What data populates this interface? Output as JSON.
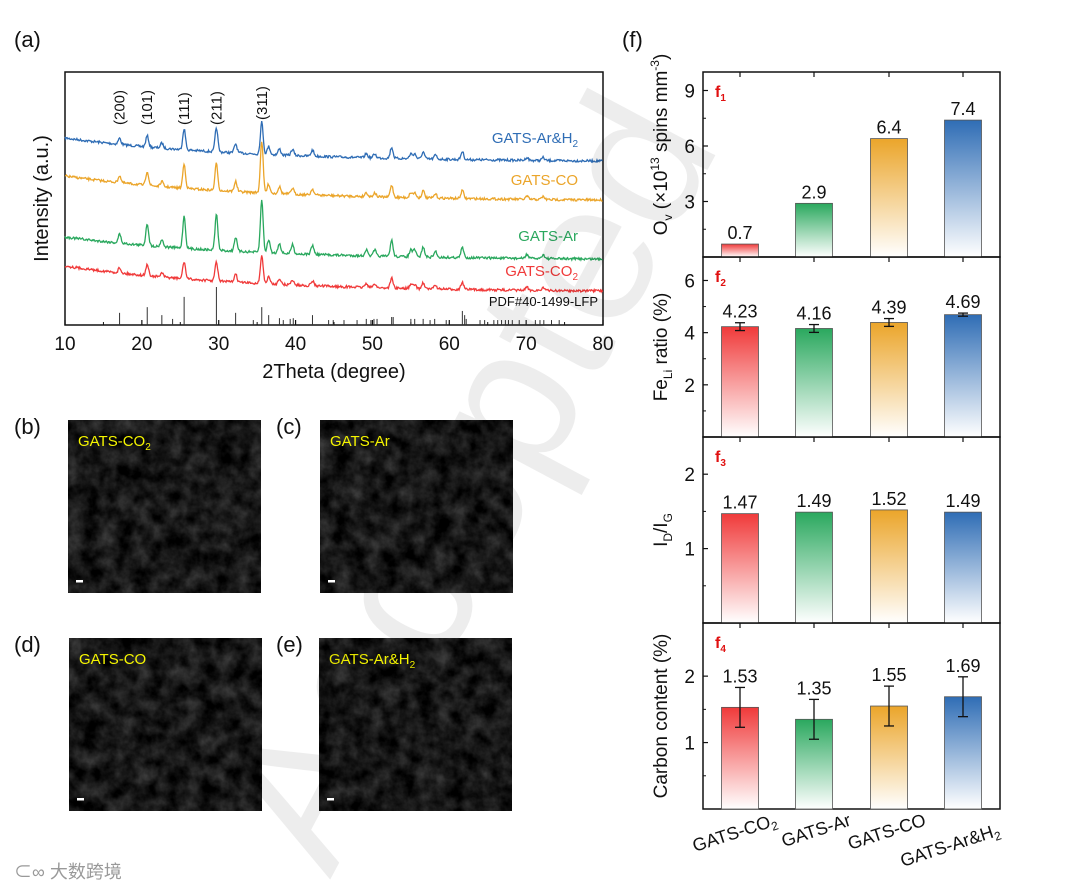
{
  "panel_labels": {
    "a": "(a)",
    "b": "(b)",
    "c": "(c)",
    "d": "(d)",
    "e": "(e)",
    "f": "(f)"
  },
  "colors": {
    "GATS-CO2": "#f03a3a",
    "GATS-Ar": "#2aa85e",
    "GATS-CO": "#eba52a",
    "GATS-Ar&H2": "#2f6db5",
    "sem_label": "#f5f500",
    "sub_label": "#e01010"
  },
  "sem_images": [
    {
      "panel": "b",
      "label": "GATS-CO",
      "label_sub": "2"
    },
    {
      "panel": "c",
      "label": "GATS-Ar",
      "label_sub": ""
    },
    {
      "panel": "d",
      "label": "GATS-CO",
      "label_sub": ""
    },
    {
      "panel": "e",
      "label": "GATS-Ar&H",
      "label_sub": "2"
    }
  ],
  "watermark": {
    "text": "Accepted",
    "logo_text": "大数跨境"
  },
  "chart_data": [
    {
      "type": "line",
      "panel": "a",
      "xlabel": "2Theta (degree)",
      "ylabel": "Intensity (a.u.)",
      "xlim": [
        10,
        80
      ],
      "xticks": [
        10,
        20,
        30,
        40,
        50,
        60,
        70,
        80
      ],
      "grid": false,
      "peak_annotations": [
        {
          "x": 17.1,
          "label": "(200)"
        },
        {
          "x": 20.7,
          "label": "(101)"
        },
        {
          "x": 25.5,
          "label": "(111)"
        },
        {
          "x": 29.7,
          "label": "(211)"
        },
        {
          "x": 35.6,
          "label": "(311)"
        }
      ],
      "peaks_2theta": [
        17.1,
        20.7,
        22.6,
        25.5,
        29.7,
        32.2,
        35.6,
        36.5,
        37.9,
        39.6,
        42.2,
        49.2,
        50.3,
        52.5,
        55.0,
        55.5,
        56.6,
        58.2,
        61.7,
        70.1,
        72.2
      ],
      "series": [
        {
          "name": "GATS-Ar&H",
          "name_sub": "2",
          "color_key": "GATS-Ar&H2",
          "relative_intensity": [
            6,
            11,
            5,
            21,
            24,
            9,
            32,
            8,
            6,
            6,
            6,
            4,
            4,
            11,
            5,
            5,
            7,
            4,
            8,
            3,
            3
          ]
        },
        {
          "name": "GATS-CO",
          "name_sub": "",
          "color_key": "GATS-CO",
          "relative_intensity": [
            7,
            14,
            5,
            24,
            27,
            10,
            52,
            9,
            7,
            6,
            6,
            4,
            4,
            12,
            5,
            5,
            7,
            4,
            8,
            3,
            3
          ]
        },
        {
          "name": "GATS-Ar",
          "name_sub": "",
          "color_key": "GATS-Ar",
          "relative_intensity": [
            9,
            22,
            7,
            32,
            36,
            14,
            52,
            13,
            10,
            9,
            9,
            6,
            6,
            16,
            7,
            7,
            10,
            6,
            10,
            4,
            4
          ]
        },
        {
          "name": "GATS-CO",
          "name_sub": "2",
          "color_key": "GATS-CO2",
          "relative_intensity": [
            5,
            11,
            4,
            17,
            19,
            8,
            28,
            7,
            6,
            5,
            5,
            4,
            4,
            10,
            4,
            4,
            6,
            4,
            7,
            3,
            3
          ]
        }
      ],
      "reference": {
        "name": "PDF#40-1499-LFP",
        "x": [
          17.1,
          20.7,
          22.6,
          24.0,
          25.5,
          29.7,
          32.2,
          34.5,
          35.6,
          36.5,
          37.9,
          38.4,
          39.3,
          39.7,
          42.2,
          44.3,
          44.9,
          46.3,
          48.0,
          49.2,
          49.8,
          50.2,
          50.6,
          52.5,
          52.7,
          55.0,
          55.5,
          56.6,
          57.5,
          58.1,
          59.6,
          61.7,
          62.0,
          62.2,
          64.0,
          64.6,
          65.8,
          66.3,
          66.8,
          67.3,
          67.7,
          68.2,
          69.1,
          70.0,
          71.2,
          71.8,
          72.3,
          73.3,
          74.3
        ],
        "relative_intensity": [
          32,
          47,
          26,
          16,
          74,
          100,
          32,
          13,
          47,
          26,
          18,
          13,
          16,
          18,
          26,
          13,
          13,
          13,
          13,
          16,
          13,
          16,
          16,
          21,
          21,
          16,
          16,
          16,
          13,
          16,
          13,
          37,
          26,
          16,
          13,
          13,
          13,
          13,
          13,
          13,
          13,
          13,
          13,
          13,
          13,
          13,
          13,
          13,
          13
        ]
      }
    },
    {
      "type": "bar",
      "panel": "f1",
      "sub_label": "f",
      "sub_index": "1",
      "categories": [
        "GATS-CO2",
        "GATS-Ar",
        "GATS-CO",
        "GATS-Ar&H2"
      ],
      "values": [
        0.7,
        2.9,
        6.4,
        7.4
      ],
      "data_labels": [
        "0.7",
        "2.9",
        "6.4",
        "7.4"
      ],
      "ylabel": "O",
      "ylabel_sub": "v",
      "ylabel_rest": " (×10",
      "ylabel_sup": "13",
      "ylabel_rest2": " spins mm",
      "ylabel_sup2": "-3",
      "ylabel_end": ")",
      "ylim": [
        0,
        10
      ],
      "yticks": [
        3,
        6,
        9
      ]
    },
    {
      "type": "bar",
      "panel": "f2",
      "sub_label": "f",
      "sub_index": "2",
      "categories": [
        "GATS-CO2",
        "GATS-Ar",
        "GATS-CO",
        "GATS-Ar&H2"
      ],
      "values": [
        4.23,
        4.16,
        4.39,
        4.69
      ],
      "errors": [
        0.15,
        0.15,
        0.15,
        0.06
      ],
      "data_labels": [
        "4.23",
        "4.16",
        "4.39",
        "4.69"
      ],
      "ylabel": "Fe",
      "ylabel_sub": "Li",
      "ylabel_rest": " ratio (%)",
      "ylim": [
        0,
        6.9
      ],
      "yticks": [
        2,
        4,
        6
      ]
    },
    {
      "type": "bar",
      "panel": "f3",
      "sub_label": "f",
      "sub_index": "3",
      "categories": [
        "GATS-CO2",
        "GATS-Ar",
        "GATS-CO",
        "GATS-Ar&H2"
      ],
      "values": [
        1.47,
        1.49,
        1.52,
        1.49
      ],
      "data_labels": [
        "1.47",
        "1.49",
        "1.52",
        "1.49"
      ],
      "ylabel": "I",
      "ylabel_sub": "D",
      "ylabel_rest": "/I",
      "ylabel_sub2": "G",
      "ylim": [
        0,
        2.5
      ],
      "yticks": [
        1,
        2
      ]
    },
    {
      "type": "bar",
      "panel": "f4",
      "sub_label": "f",
      "sub_index": "4",
      "categories": [
        "GATS-CO2",
        "GATS-Ar",
        "GATS-CO",
        "GATS-Ar&H2"
      ],
      "values": [
        1.53,
        1.35,
        1.55,
        1.69
      ],
      "errors": [
        0.3,
        0.3,
        0.3,
        0.3
      ],
      "data_labels": [
        "1.53",
        "1.35",
        "1.55",
        "1.69"
      ],
      "ylabel": "Carbon content (%)",
      "ylim": [
        0,
        2.8
      ],
      "yticks": [
        1,
        2
      ]
    }
  ],
  "f_xticklabels": [
    {
      "text": "GATS-CO",
      "sub": "2"
    },
    {
      "text": "GATS-Ar",
      "sub": ""
    },
    {
      "text": "GATS-CO",
      "sub": ""
    },
    {
      "text": "GATS-Ar&H",
      "sub": "2"
    }
  ]
}
